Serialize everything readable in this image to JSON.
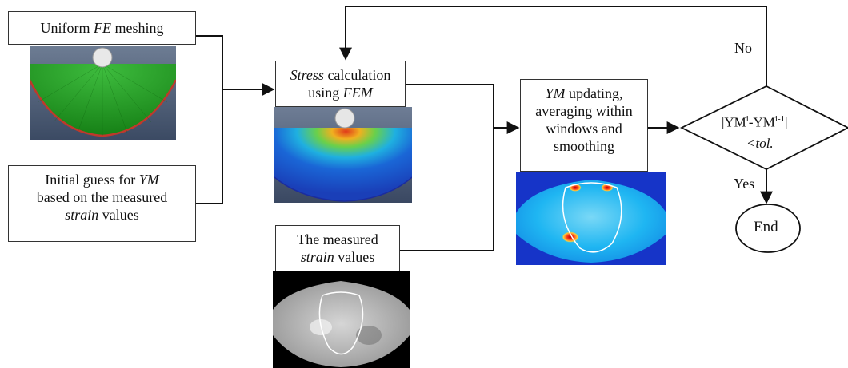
{
  "boxes": {
    "meshing": {
      "pre": "Uniform ",
      "em": "FE",
      "post": " meshing"
    },
    "initial_guess": {
      "line1_pre": "Initial guess for ",
      "line1_em": "YM",
      "line2": "based on the measured",
      "line3_em": "strain",
      "line3_post": " values"
    },
    "stress": {
      "line1_em": "Stress",
      "line1_post": " calculation",
      "line2_pre": "using ",
      "line2_em": "FEM"
    },
    "measured": {
      "line1": "The measured",
      "line2_em": "strain",
      "line2_post": " values"
    },
    "ym_update": {
      "line1_em": "YM",
      "line1_post": " updating,",
      "line2": "averaging within",
      "line3": "windows and",
      "line4": "smoothing"
    }
  },
  "decision": {
    "line1_a": "|YM",
    "line1_sup_a": "i",
    "line1_b": "-YM",
    "line1_sup_b": "i-1",
    "line1_c": "|",
    "line2": "<tol."
  },
  "labels": {
    "no": "No",
    "yes": "Yes"
  },
  "end": {
    "label": "End"
  },
  "colors": {
    "stroke": "#111111",
    "mesh_green": "#1f8f1f",
    "mesh_edge": "#c0392b",
    "slate_bg": "#4c5d77",
    "stress_blue": "#1a4fd1",
    "ym_blue": "#1468e0",
    "ym_cyan": "#1fb6f2"
  }
}
